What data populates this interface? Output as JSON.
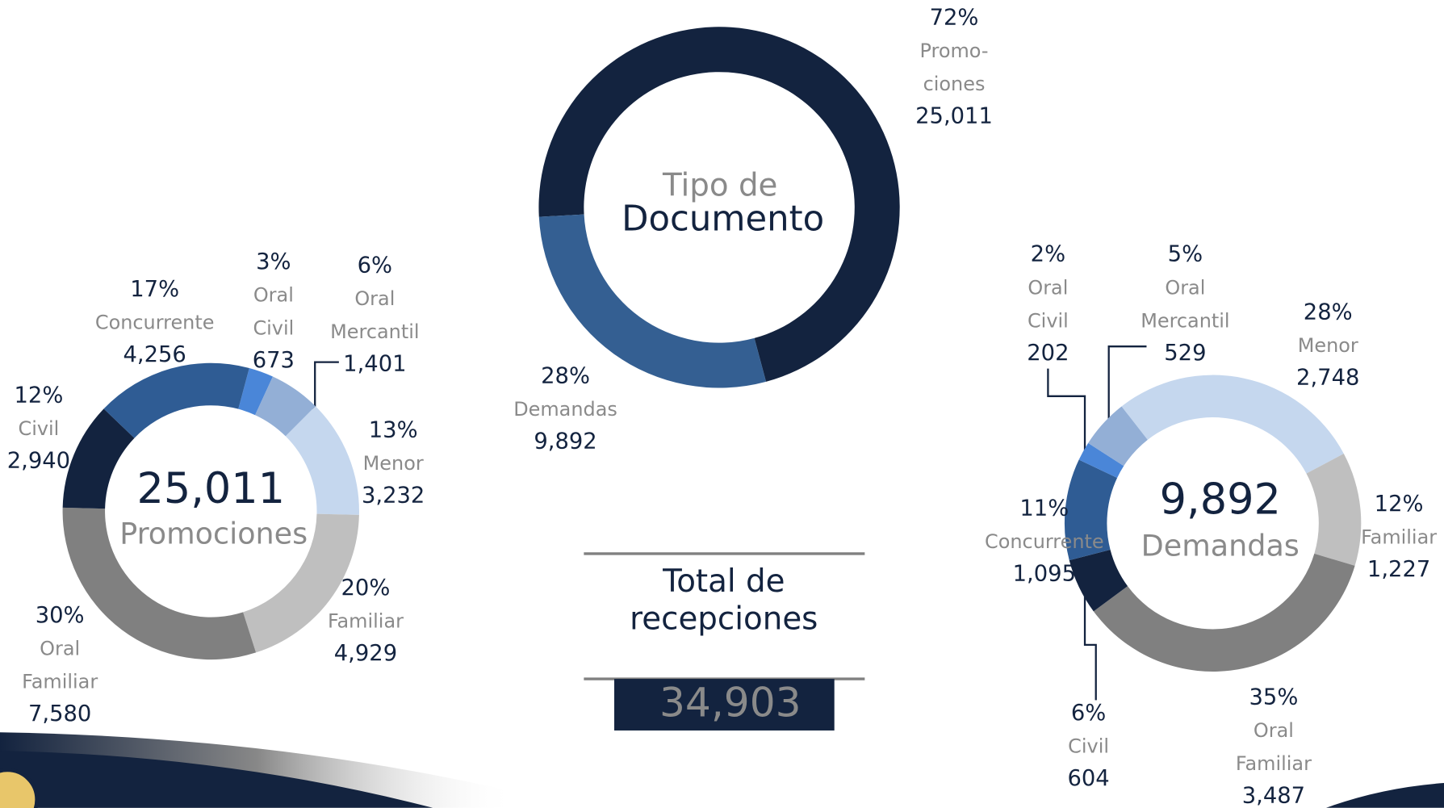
{
  "chart_data": [
    {
      "type": "donut",
      "title_lines": [
        "Tipo de",
        "Documento"
      ],
      "categories": [
        [
          "Promo-",
          "ciones"
        ],
        [
          "Demandas"
        ]
      ],
      "values": [
        25011,
        9892
      ],
      "value_labels": [
        "25,011",
        "9,892"
      ],
      "shares": [
        72,
        28
      ],
      "share_labels": [
        "72%",
        "28%"
      ],
      "colors": [
        "#13233f",
        "#345f92"
      ]
    },
    {
      "type": "donut",
      "total": 25011,
      "total_label": "25,011",
      "center_text": "Promociones",
      "categories": [
        [
          "Oral",
          "Civil"
        ],
        [
          "Oral",
          "Mercantil"
        ],
        [
          "Menor"
        ],
        [
          "Familiar"
        ],
        [
          "Oral",
          "Familiar"
        ],
        [
          "Civil"
        ],
        [
          "Concurrente"
        ]
      ],
      "values": [
        673,
        1401,
        3232,
        4929,
        7580,
        2940,
        4256
      ],
      "value_labels": [
        "673",
        "1,401",
        "3,232",
        "4,929",
        "7,580",
        "2,940",
        "4,256"
      ],
      "shares": [
        3,
        6,
        13,
        20,
        30,
        12,
        17
      ],
      "share_labels": [
        "3%",
        "6%",
        "13%",
        "20%",
        "30%",
        "12%",
        "17%"
      ],
      "colors": [
        "#4a86d8",
        "#93afd6",
        "#c5d7ee",
        "#bfbfbf",
        "#808080",
        "#13233f",
        "#2f5c94"
      ]
    },
    {
      "type": "donut",
      "total": 9892,
      "total_label": "9,892",
      "center_text": "Demandas",
      "categories": [
        [
          "Menor"
        ],
        [
          "Familiar"
        ],
        [
          "Oral",
          "Familiar"
        ],
        [
          "Civil"
        ],
        [
          "Concurrente"
        ],
        [
          "Oral",
          "Civil"
        ],
        [
          "Oral",
          "Mercantil"
        ]
      ],
      "values": [
        2748,
        1227,
        3487,
        604,
        1095,
        202,
        529
      ],
      "value_labels": [
        "2,748",
        "1,227",
        "3,487",
        "604",
        "1,095",
        "202",
        "529"
      ],
      "shares": [
        28,
        12,
        35,
        6,
        11,
        2,
        5
      ],
      "share_labels": [
        "28%",
        "12%",
        "35%",
        "6%",
        "11%",
        "2%",
        "5%"
      ],
      "colors": [
        "#c5d7ee",
        "#bfbfbf",
        "#808080",
        "#13233f",
        "#2f5c94",
        "#4a86d8",
        "#93afd6"
      ]
    }
  ],
  "summary": {
    "title_lines": [
      "Total de",
      "recepciones"
    ],
    "value": 34903,
    "label": "34,903"
  }
}
